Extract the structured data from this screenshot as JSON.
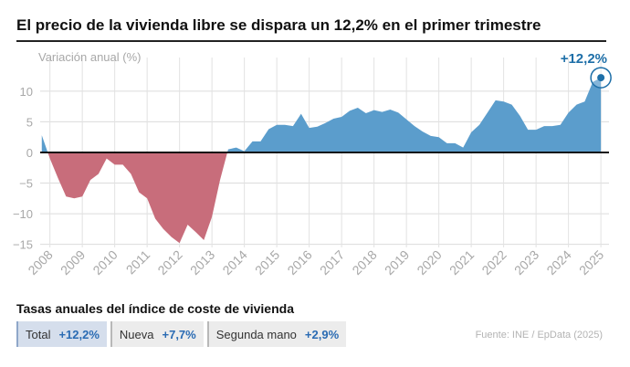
{
  "title": "El precio de la vivienda libre se dispara un 12,2% en el primer trimestre",
  "chart_data": {
    "type": "area",
    "ylabel": "Variación anual (%)",
    "ylim": [
      -15.5,
      14
    ],
    "yticks": [
      10,
      5,
      0,
      -5,
      -10,
      -15
    ],
    "ytick_labels": [
      "10",
      "5",
      "0",
      "−5",
      "−10",
      "−15"
    ],
    "xlim": [
      2007.7,
      2025.25
    ],
    "xticks": [
      2008,
      2009,
      2010,
      2011,
      2012,
      2013,
      2014,
      2015,
      2016,
      2017,
      2018,
      2019,
      2020,
      2021,
      2022,
      2023,
      2024,
      2025
    ],
    "grid": true,
    "colors": {
      "positive": "#5b9dcc",
      "negative": "#c86d7b",
      "highlight": "#1e6fa8",
      "axis": "#cfcfcf"
    },
    "series": [
      {
        "x": [
          2007.75,
          2008.0,
          2008.25,
          2008.5,
          2008.75,
          2009.0,
          2009.25,
          2009.5,
          2009.75,
          2010.0,
          2010.25,
          2010.5,
          2010.75,
          2011.0,
          2011.25,
          2011.5,
          2011.75,
          2012.0,
          2012.25,
          2012.5,
          2012.75,
          2013.0,
          2013.25,
          2013.5,
          2013.75,
          2014.0,
          2014.25,
          2014.5,
          2014.75,
          2015.0,
          2015.25,
          2015.5,
          2015.75,
          2016.0,
          2016.25,
          2016.5,
          2016.75,
          2017.0,
          2017.25,
          2017.5,
          2017.75,
          2018.0,
          2018.25,
          2018.5,
          2018.75,
          2019.0,
          2019.25,
          2019.5,
          2019.75,
          2020.0,
          2020.25,
          2020.5,
          2020.75,
          2021.0,
          2021.25,
          2021.5,
          2021.75,
          2022.0,
          2022.25,
          2022.5,
          2022.75,
          2023.0,
          2023.25,
          2023.5,
          2023.75,
          2024.0,
          2024.25,
          2024.5,
          2024.75,
          2025.0
        ],
        "y": [
          2.8,
          -1.0,
          -4.2,
          -7.2,
          -7.5,
          -7.2,
          -4.5,
          -3.5,
          -1.0,
          -2.0,
          -2.0,
          -3.5,
          -6.5,
          -7.5,
          -10.8,
          -12.5,
          -13.8,
          -14.8,
          -11.8,
          -13.0,
          -14.3,
          -10.5,
          -4.5,
          0.5,
          0.8,
          0.2,
          1.8,
          1.8,
          3.8,
          4.5,
          4.5,
          4.3,
          6.3,
          4.0,
          4.2,
          4.8,
          5.5,
          5.8,
          6.8,
          7.3,
          6.4,
          6.9,
          6.6,
          7.0,
          6.5,
          5.4,
          4.3,
          3.4,
          2.7,
          2.5,
          1.5,
          1.5,
          0.8,
          3.3,
          4.5,
          6.5,
          8.5,
          8.3,
          7.8,
          6.0,
          3.7,
          3.7,
          4.3,
          4.3,
          4.5,
          6.5,
          7.8,
          8.3,
          11.5,
          12.2
        ]
      }
    ],
    "annotation": {
      "label": "+12,2%",
      "x": 2025.0,
      "y": 12.2
    }
  },
  "section_title": "Tasas anuales del índice de coste de vivienda",
  "tabs": [
    {
      "label": "Total",
      "value": "+12,2%",
      "active": true
    },
    {
      "label": "Nueva",
      "value": "+7,7%",
      "active": false
    },
    {
      "label": "Segunda mano",
      "value": "+2,9%",
      "active": false
    }
  ],
  "source": "Fuente: INE / EpData (2025)"
}
